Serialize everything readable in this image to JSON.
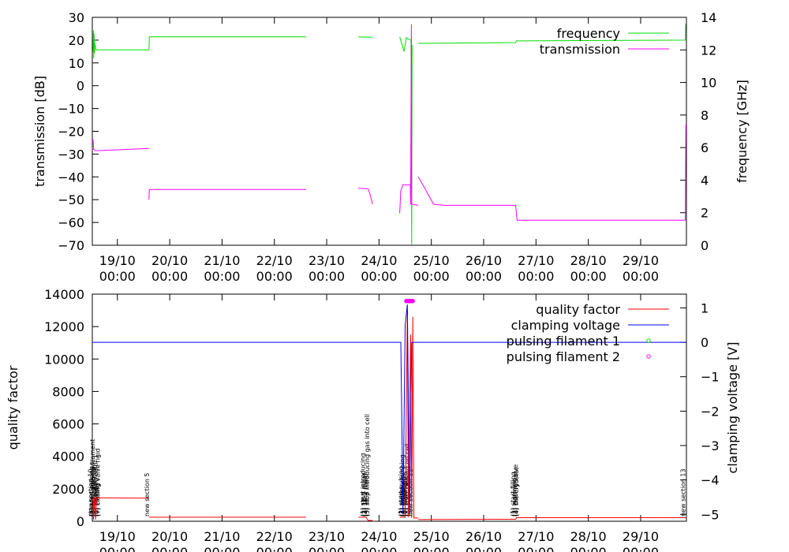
{
  "chart_data": [
    {
      "type": "line",
      "title": "",
      "xlabel": "",
      "ylabel": "transmission [dB]",
      "y2label": "frequency [GHz]",
      "ylim": [
        -70,
        30
      ],
      "y2lim": [
        0,
        14
      ],
      "xlim": [
        "18/10 12:30",
        "29/10 21:00"
      ],
      "x_ticks": [
        "19/10\n00:00",
        "20/10\n00:00",
        "21/10\n00:00",
        "22/10\n00:00",
        "23/10\n00:00",
        "24/10\n00:00",
        "25/10\n00:00",
        "26/10\n00:00",
        "27/10\n00:00",
        "28/10\n00:00",
        "29/10\n00:00"
      ],
      "y_ticks": [
        30,
        20,
        10,
        0,
        -10,
        -20,
        -30,
        -40,
        -50,
        -60,
        -70
      ],
      "y2_ticks": [
        14,
        12,
        10,
        8,
        6,
        4,
        2,
        0
      ],
      "legend_position": "top-right",
      "grid": false,
      "series": [
        {
          "name": "frequency",
          "axis": "y2",
          "color": "#00dd00",
          "segments": [
            [
              [
                "18/10 12:50",
                11.9
              ],
              [
                "18/10 13:00",
                13.2
              ],
              [
                "18/10 13:10",
                11.5
              ],
              [
                "18/10 13:20",
                13.0
              ],
              [
                "18/10 13:30",
                11.8
              ],
              [
                "18/10 13:40",
                12.4
              ],
              [
                "18/10 14:10",
                12.0
              ],
              [
                "19/10 14:30",
                12.0
              ]
            ],
            [
              [
                "19/10 14:30",
                12.0
              ],
              [
                "19/10 14:40",
                12.8
              ],
              [
                "22/10 14:30",
                12.8
              ]
            ],
            [
              [
                "23/10 14:30",
                12.8
              ],
              [
                "23/10 21:00",
                12.78
              ]
            ],
            [
              [
                "24/10 09:30",
                12.8
              ],
              [
                "24/10 11:30",
                11.9
              ],
              [
                "24/10 12:30",
                12.75
              ],
              [
                "24/10 14:40",
                12.6
              ],
              [
                "24/10 15:00",
                0.0
              ],
              [
                "24/10 15:10",
                12.3
              ]
            ],
            [
              [
                "24/10 18:00",
                12.4
              ],
              [
                "26/10 14:40",
                12.45
              ],
              [
                "26/10 15:00",
                12.55
              ],
              [
                "29/10 20:30",
                12.6
              ],
              [
                "29/10 20:40",
                13.6
              ]
            ]
          ]
        },
        {
          "name": "transmission",
          "axis": "y",
          "color": "#ff00ff",
          "segments": [
            [
              [
                "18/10 12:30",
                -24.5
              ],
              [
                "18/10 12:50",
                -23.5
              ],
              [
                "18/10 13:10",
                -28.0
              ],
              [
                "18/10 14:00",
                -28.5
              ],
              [
                "19/10 14:30",
                -27.5
              ]
            ],
            [
              [
                "19/10 14:30",
                -50.0
              ],
              [
                "19/10 14:40",
                -45.5
              ],
              [
                "22/10 14:30",
                -45.5
              ]
            ],
            [
              [
                "23/10 14:30",
                -45.0
              ],
              [
                "23/10 19:00",
                -45.2
              ],
              [
                "23/10 20:00",
                -48.0
              ],
              [
                "23/10 21:00",
                -52.0
              ]
            ],
            [
              [
                "24/10 09:30",
                -56.0
              ],
              [
                "24/10 10:00",
                -46.0
              ],
              [
                "24/10 11:00",
                -43.5
              ],
              [
                "24/10 14:20",
                -43.5
              ],
              [
                "24/10 14:30",
                -52.0
              ],
              [
                "24/10 14:50",
                27.0
              ],
              [
                "24/10 15:00",
                -52.0
              ],
              [
                "24/10 18:00",
                -52.5
              ]
            ],
            [
              [
                "24/10 18:00",
                -40.0
              ],
              [
                "24/10 21:00",
                -45.0
              ],
              [
                "25/10 01:00",
                -52.0
              ],
              [
                "25/10 06:00",
                -52.5
              ],
              [
                "26/10 14:40",
                -52.5
              ],
              [
                "26/10 15:00",
                -56.0
              ],
              [
                "26/10 15:20",
                -59.0
              ],
              [
                "29/10 20:30",
                -59.0
              ],
              [
                "29/10 20:45",
                -17.0
              ]
            ]
          ]
        }
      ]
    },
    {
      "type": "line",
      "title": "",
      "xlabel": "",
      "ylabel": "quality factor",
      "y2label": "clamping voltage [V]",
      "ylim": [
        0,
        14000
      ],
      "y2lim": [
        -5.2,
        1.4
      ],
      "xlim": [
        "18/10 12:30",
        "29/10 21:00"
      ],
      "x_ticks": [
        "19/10\n00:00",
        "20/10\n00:00",
        "21/10\n00:00",
        "22/10\n00:00",
        "23/10\n00:00",
        "24/10\n00:00",
        "25/10\n00:00",
        "26/10\n00:00",
        "27/10\n00:00",
        "28/10\n00:00",
        "29/10\n00:00"
      ],
      "y_ticks": [
        14000,
        12000,
        10000,
        8000,
        6000,
        4000,
        2000,
        0
      ],
      "y2_ticks": [
        1,
        0,
        -1,
        -2,
        -3,
        -4,
        -5
      ],
      "legend_position": "top-right",
      "grid": false,
      "series": [
        {
          "name": "quality factor",
          "axis": "y",
          "color": "#ff0000",
          "segments": [
            [
              [
                "18/10 12:50",
                1450
              ],
              [
                "18/10 13:00",
                100
              ],
              [
                "18/10 13:30",
                1450
              ],
              [
                "18/10 14:00",
                100
              ],
              [
                "18/10 14:30",
                1450
              ],
              [
                "19/10 14:30",
                1420
              ]
            ],
            [
              [
                "19/10 14:30",
                250
              ],
              [
                "22/10 14:30",
                250
              ]
            ],
            [
              [
                "23/10 14:30",
                250
              ],
              [
                "23/10 18:00",
                250
              ],
              [
                "23/10 19:00",
                50
              ],
              [
                "23/10 21:00",
                50
              ]
            ],
            [
              [
                "24/10 09:30",
                250
              ],
              [
                "24/10 12:00",
                250
              ],
              [
                "24/10 13:00",
                13000
              ],
              [
                "24/10 13:30",
                250
              ],
              [
                "24/10 14:30",
                11500
              ],
              [
                "24/10 15:00",
                200
              ],
              [
                "24/10 15:30",
                12600
              ],
              [
                "24/10 16:00",
                200
              ],
              [
                "24/10 18:00",
                200
              ]
            ],
            [
              [
                "24/10 18:00",
                100
              ],
              [
                "26/10 14:40",
                120
              ],
              [
                "26/10 15:00",
                220
              ],
              [
                "29/10 20:45",
                220
              ]
            ]
          ]
        },
        {
          "name": "clamping voltage",
          "axis": "y2",
          "color": "#0000ff",
          "segments": [
            [
              [
                "18/10 12:30",
                0.0
              ],
              [
                "24/10 10:00",
                0.0
              ],
              [
                "24/10 11:00",
                -5.0
              ],
              [
                "24/10 12:00",
                0.5
              ],
              [
                "24/10 13:00",
                1.1
              ],
              [
                "24/10 14:00",
                -5.0
              ],
              [
                "24/10 15:00",
                0.0
              ],
              [
                "29/10 21:00",
                0.0
              ]
            ]
          ]
        },
        {
          "name": "pulsing filament 1",
          "axis": "y2",
          "color": "#00dd00",
          "marker": "circle",
          "points": []
        },
        {
          "name": "pulsing filament 2",
          "axis": "y2",
          "color": "#ff00ff",
          "marker": "circle",
          "points": [
            [
              "24/10 12:30",
              1.2
            ],
            [
              "24/10 12:45",
              1.2
            ],
            [
              "24/10 13:00",
              1.2
            ],
            [
              "24/10 13:15",
              1.2
            ],
            [
              "24/10 13:30",
              1.2
            ],
            [
              "24/10 13:45",
              1.2
            ],
            [
              "24/10 14:00",
              1.2
            ],
            [
              "24/10 14:15",
              1.2
            ],
            [
              "24/10 14:30",
              1.2
            ],
            [
              "24/10 14:45",
              1.2
            ],
            [
              "24/10 15:00",
              1.2
            ],
            [
              "24/10 15:15",
              1.2
            ],
            [
              "24/10 15:30",
              1.2
            ]
          ]
        }
      ],
      "annotations": [
        {
          "x": "18/10 12:40",
          "text": "new section 10"
        },
        {
          "x": "18/10 13:00",
          "text": "(1) start pulsing"
        },
        {
          "x": "18/10 13:30",
          "text": "(2) stop pulsing filament"
        },
        {
          "x": "18/10 14:00",
          "text": "(3) adjusting"
        },
        {
          "x": "18/10 14:30",
          "text": "(4) increase temp"
        },
        {
          "x": "18/10 15:00",
          "text": "(5) pumping cell"
        },
        {
          "x": "18/10 15:30",
          "text": "(6) cooling"
        },
        {
          "x": "18/10 16:00",
          "text": "(7) closing valve rigid"
        },
        {
          "x": "19/10 14:30",
          "text": "new section 5"
        },
        {
          "x": "23/10 17:30",
          "text": "(1) start introducing"
        },
        {
          "x": "23/10 18:00",
          "text": "(2) 1E-3 mbar"
        },
        {
          "x": "23/10 18:30",
          "text": "(3) 1E-2 mbar"
        },
        {
          "x": "23/10 19:00",
          "text": "(4) 1E-1 mbar"
        },
        {
          "x": "23/10 19:30",
          "text": "(5) stop introducing gas into cell"
        },
        {
          "x": "24/10 11:00",
          "text": "(1) start pulsing"
        },
        {
          "x": "24/10 11:20",
          "text": "(2) pulse"
        },
        {
          "x": "24/10 11:40",
          "text": "(3) switch clamping"
        },
        {
          "x": "24/10 12:00",
          "text": "(4) adjusting"
        },
        {
          "x": "24/10 12:20",
          "text": "(5) cooling"
        },
        {
          "x": "24/10 12:40",
          "text": "(6) heating"
        },
        {
          "x": "24/10 13:00",
          "text": "(7) warm bath"
        },
        {
          "x": "24/10 14:00",
          "text": "(8) start pulsing on cell"
        },
        {
          "x": "24/10 15:30",
          "text": "new section 11"
        },
        {
          "x": "26/10 14:30",
          "text": "(1) start filling"
        },
        {
          "x": "26/10 15:00",
          "text": "(2) warming"
        },
        {
          "x": "26/10 15:30",
          "text": "(3) closing valve"
        },
        {
          "x": "26/10 16:00",
          "text": "(4) the cryostat"
        },
        {
          "x": "29/10 20:30",
          "text": "new section 13"
        }
      ]
    }
  ]
}
